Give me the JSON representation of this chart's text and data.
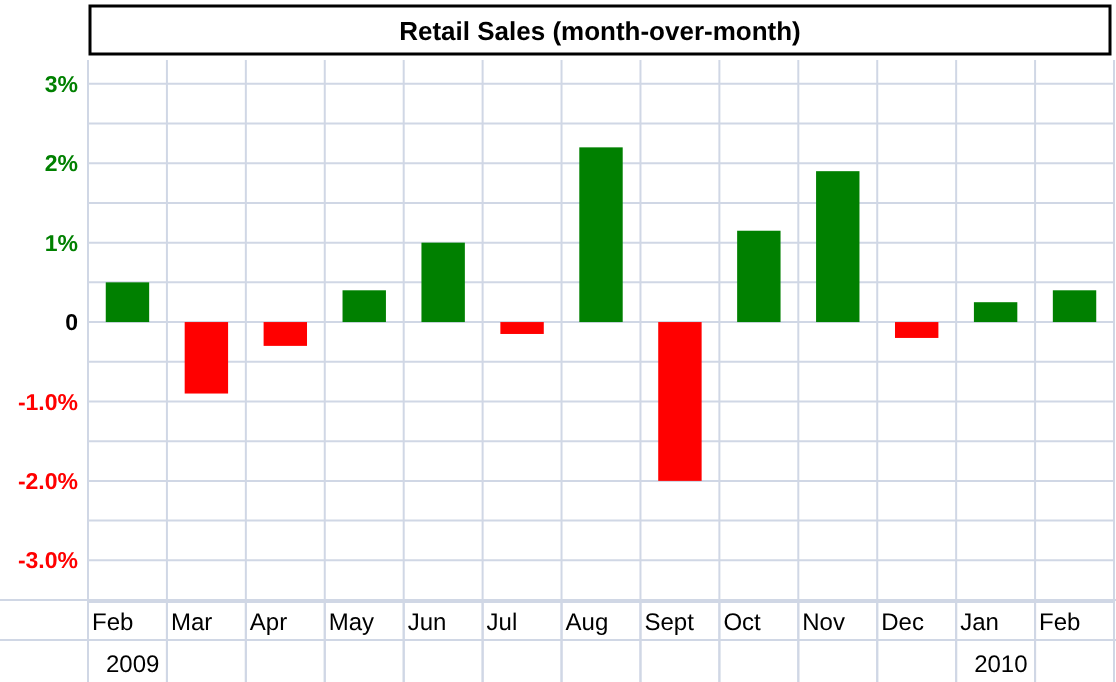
{
  "chart_data": {
    "type": "bar",
    "title": "Retail Sales (month-over-month)",
    "categories": [
      "Feb",
      "Mar",
      "Apr",
      "May",
      "Jun",
      "Jul",
      "Aug",
      "Sept",
      "Oct",
      "Nov",
      "Dec",
      "Jan",
      "Feb"
    ],
    "values": [
      0.5,
      -0.9,
      -0.3,
      0.4,
      1.0,
      -0.15,
      2.2,
      -2.0,
      1.15,
      1.9,
      -0.2,
      0.25,
      0.4
    ],
    "colors": [
      "#008000",
      "#ff0000",
      "#ff0000",
      "#008000",
      "#008000",
      "#ff0000",
      "#008000",
      "#ff0000",
      "#008000",
      "#008000",
      "#ff0000",
      "#008000",
      "#008000"
    ],
    "ylim": [
      -3.5,
      3.3
    ],
    "yticks": [
      {
        "value": -3.5,
        "label": null
      },
      {
        "value": -3,
        "label": "-3.0%"
      },
      {
        "value": -2.5,
        "label": null
      },
      {
        "value": -2,
        "label": "-2.0%"
      },
      {
        "value": -1.5,
        "label": null
      },
      {
        "value": -1,
        "label": "-1.0%"
      },
      {
        "value": -0.5,
        "label": null
      },
      0,
      {
        "value": 0.5,
        "label": null
      },
      {
        "value": 1,
        "label": "1%"
      },
      {
        "value": 1.5,
        "label": null
      },
      {
        "value": 2,
        "label": "2%"
      },
      {
        "value": 2.5,
        "label": null
      },
      {
        "value": 3,
        "label": "3%"
      }
    ],
    "annotations": [
      "2009",
      "2010"
    ],
    "grid": true,
    "legend": false
  }
}
